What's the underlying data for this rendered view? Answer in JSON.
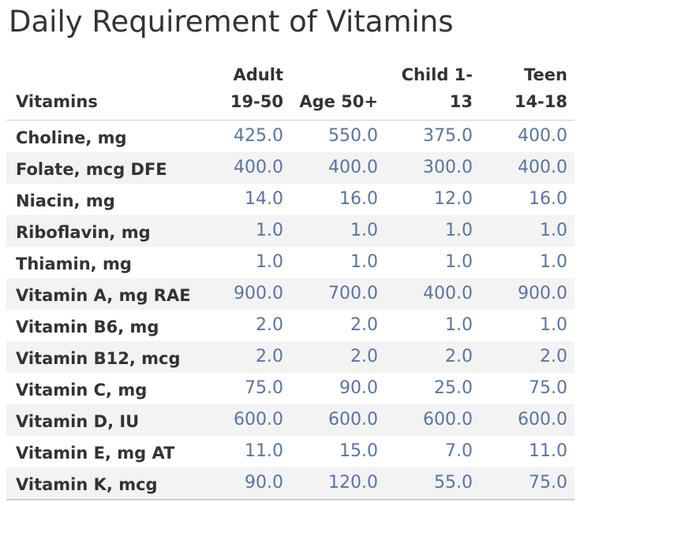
{
  "title": "Daily Requirement of Vitamins",
  "colors": {
    "value_text": "#5a74a0",
    "label_text": "#333333",
    "band": "#f3f3f3"
  },
  "chart_data": {
    "type": "table",
    "title": "Daily Requirement of Vitamins",
    "row_header": "Vitamins",
    "columns": [
      "Adult\n19-50",
      "Age 50+",
      "Child 1-\n13",
      "Teen\n14-18"
    ],
    "rows": [
      {
        "label": "Choline, mg",
        "values": [
          "425.0",
          "550.0",
          "375.0",
          "400.0"
        ]
      },
      {
        "label": "Folate, mcg DFE",
        "values": [
          "400.0",
          "400.0",
          "300.0",
          "400.0"
        ]
      },
      {
        "label": "Niacin, mg",
        "values": [
          "14.0",
          "16.0",
          "12.0",
          "16.0"
        ]
      },
      {
        "label": "Riboflavin, mg",
        "values": [
          "1.0",
          "1.0",
          "1.0",
          "1.0"
        ]
      },
      {
        "label": "Thiamin, mg",
        "values": [
          "1.0",
          "1.0",
          "1.0",
          "1.0"
        ]
      },
      {
        "label": "Vitamin A, mg RAE",
        "values": [
          "900.0",
          "700.0",
          "400.0",
          "900.0"
        ]
      },
      {
        "label": "Vitamin B6, mg",
        "values": [
          "2.0",
          "2.0",
          "1.0",
          "1.0"
        ]
      },
      {
        "label": "Vitamin B12, mcg",
        "values": [
          "2.0",
          "2.0",
          "2.0",
          "2.0"
        ]
      },
      {
        "label": "Vitamin C, mg",
        "values": [
          "75.0",
          "90.0",
          "25.0",
          "75.0"
        ]
      },
      {
        "label": "Vitamin D, IU",
        "values": [
          "600.0",
          "600.0",
          "600.0",
          "600.0"
        ]
      },
      {
        "label": "Vitamin E, mg AT",
        "values": [
          "11.0",
          "15.0",
          "7.0",
          "11.0"
        ]
      },
      {
        "label": "Vitamin K, mcg",
        "values": [
          "90.0",
          "120.0",
          "55.0",
          "75.0"
        ]
      }
    ]
  }
}
